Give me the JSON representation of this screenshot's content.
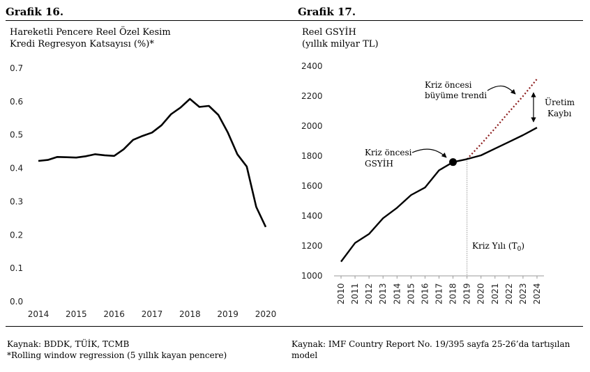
{
  "left": {
    "heading": "Grafik 16.",
    "subtitle_line1": "Hareketli Pencere Reel Özel Kesim",
    "subtitle_line2": "Kredi Regresyon Katsayısı (%)*",
    "source_line1": "Kaynak: BDDK, TÜİK, TCMB",
    "source_line2": "*Rolling window regression (5 yıllık kayan pencere)"
  },
  "right": {
    "heading": "Grafik 17.",
    "subtitle_line1": "Reel GSYİH",
    "subtitle_line2": "(yıllık milyar TL)",
    "source_line1": "Kaynak: IMF Country Report No. 19/395 sayfa 25-26’da tartışılan",
    "source_line2": "model"
  },
  "chart_data": [
    {
      "type": "line",
      "xlim": [
        2014,
        2020
      ],
      "ylim": [
        0,
        0.7
      ],
      "x_ticks": [
        "2014",
        "2015",
        "2016",
        "2017",
        "2018",
        "2019",
        "2020"
      ],
      "y_ticks": [
        "0.0",
        "0.1",
        "0.2",
        "0.3",
        "0.4",
        "0.5",
        "0.6",
        "0.7"
      ],
      "grid": false,
      "series": [
        {
          "x": [
            2014.0,
            2014.25,
            2014.5,
            2014.75,
            2015.0,
            2015.25,
            2015.5,
            2015.75,
            2016.0,
            2016.25,
            2016.5,
            2016.75,
            2017.0,
            2017.25,
            2017.5,
            2017.75,
            2018.0,
            2018.25,
            2018.5,
            2018.75,
            2019.0,
            2019.25,
            2019.5,
            2019.75,
            2020.0
          ],
          "y": [
            0.42,
            0.423,
            0.432,
            0.431,
            0.43,
            0.434,
            0.44,
            0.437,
            0.435,
            0.455,
            0.483,
            0.495,
            0.505,
            0.527,
            0.56,
            0.58,
            0.606,
            0.582,
            0.585,
            0.558,
            0.505,
            0.44,
            0.403,
            0.282,
            0.222
          ],
          "color": "#000000"
        }
      ]
    },
    {
      "type": "line",
      "xlim": [
        2010,
        2024
      ],
      "ylim": [
        1000,
        2400
      ],
      "x_ticks": [
        "2010",
        "2011",
        "2012",
        "2013",
        "2014",
        "2015",
        "2016",
        "2017",
        "2018",
        "2019",
        "2020",
        "2021",
        "2022",
        "2023",
        "2024"
      ],
      "y_ticks": [
        "1000",
        "1200",
        "1400",
        "1600",
        "1800",
        "2000",
        "2200",
        "2400"
      ],
      "grid": false,
      "series": [
        {
          "x": [
            2010,
            2011,
            2012,
            2013,
            2014,
            2015,
            2016,
            2017,
            2018,
            2019,
            2020,
            2021,
            2022,
            2023,
            2024
          ],
          "y": [
            1090,
            1215,
            1275,
            1380,
            1450,
            1535,
            1585,
            1700,
            1755,
            1775,
            1800,
            1845,
            1890,
            1935,
            1985
          ],
          "color": "#000000",
          "style": "solid"
        },
        {
          "x": [
            2019,
            2020,
            2021,
            2022,
            2023,
            2024
          ],
          "y": [
            1775,
            1875,
            1980,
            2090,
            2195,
            2310
          ],
          "color": "#8b1a1a",
          "style": "dotted"
        }
      ],
      "marker": {
        "x": 2018,
        "y": 1755
      },
      "vline": {
        "x": 2019
      },
      "annotations": {
        "trend_line1": "Kriz öncesi",
        "trend_line2": "büyüme trendi",
        "gdp_line1": "Kriz öncesi",
        "gdp_line2": "GSYİH",
        "loss_line1": "Üretim",
        "loss_line2": "Kaybı",
        "crisis_prefix": "Kriz Yılı (T",
        "crisis_sub": "0",
        "crisis_suffix": ")"
      },
      "accent_color": "#8b1a1a"
    }
  ]
}
